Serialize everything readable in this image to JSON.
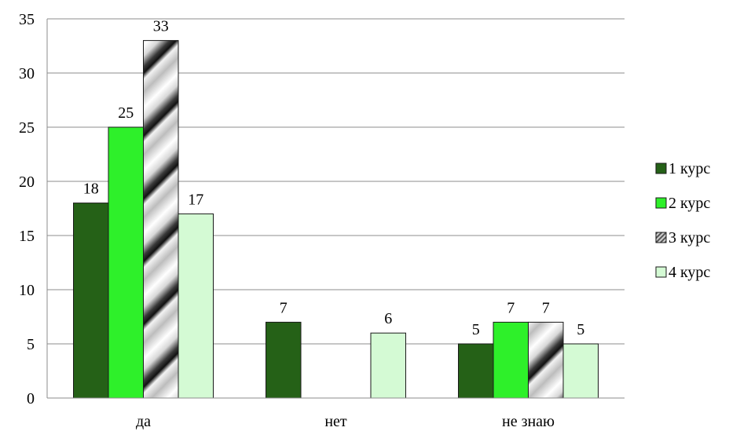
{
  "chart_data": {
    "type": "bar",
    "categories": [
      "да",
      "нет",
      "не знаю"
    ],
    "series": [
      {
        "name": "1 курс",
        "values": [
          18,
          7,
          5
        ],
        "color": "#256117",
        "fill_style": "solid"
      },
      {
        "name": "2 курс",
        "values": [
          25,
          null,
          7
        ],
        "color": "#2ef02a",
        "fill_style": "solid"
      },
      {
        "name": "3 курс",
        "values": [
          33,
          null,
          7
        ],
        "color": "#b0b0b0",
        "fill_style": "diagonal-metallic"
      },
      {
        "name": "4 курс",
        "values": [
          17,
          6,
          5
        ],
        "color": "#d4fad4",
        "fill_style": "solid"
      }
    ],
    "ylim": [
      0,
      35
    ],
    "yticks": [
      0,
      5,
      10,
      15,
      20,
      25,
      30,
      35
    ],
    "grid": true,
    "legend_position": "right",
    "data_labels": true
  }
}
